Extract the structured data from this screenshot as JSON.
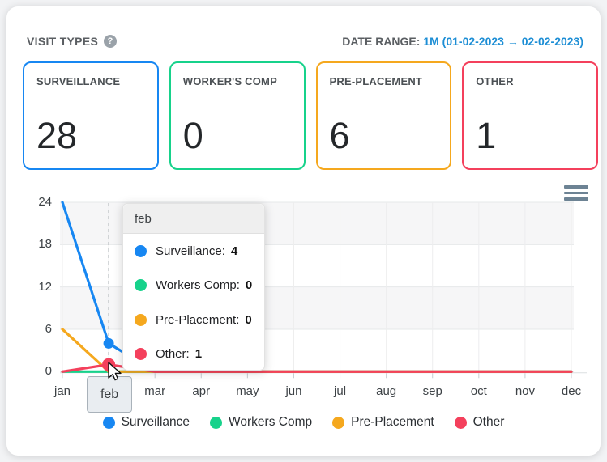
{
  "page": {
    "title": "VISIT TYPES",
    "help_icon": "?",
    "date_range_label": "DATE RANGE: ",
    "date_range_value": "1M (01-02-2023 → 02-02-2023)"
  },
  "cards": [
    {
      "title": "SURVEILLANCE",
      "value": "28",
      "color": "#1787f2"
    },
    {
      "title": "WORKER'S COMP",
      "value": "0",
      "color": "#17d28b"
    },
    {
      "title": "PRE-PLACEMENT",
      "value": "6",
      "color": "#f5a81e"
    },
    {
      "title": "OTHER",
      "value": "1",
      "color": "#f4405c"
    }
  ],
  "chart_data": {
    "type": "line",
    "x": [
      "jan",
      "feb",
      "mar",
      "apr",
      "may",
      "jun",
      "jul",
      "aug",
      "sep",
      "oct",
      "nov",
      "dec"
    ],
    "series": [
      {
        "name": "Surveillance",
        "color": "#1787f2",
        "values": [
          24,
          4,
          0,
          0,
          0,
          0,
          0,
          0,
          0,
          0,
          0,
          0
        ]
      },
      {
        "name": "Workers Comp",
        "color": "#17d28b",
        "values": [
          0,
          0,
          0,
          0,
          0,
          0,
          0,
          0,
          0,
          0,
          0,
          0
        ]
      },
      {
        "name": "Pre-Placement",
        "color": "#f5a81e",
        "values": [
          6,
          0,
          0,
          0,
          0,
          0,
          0,
          0,
          0,
          0,
          0,
          0
        ]
      },
      {
        "name": "Other",
        "color": "#f4405c",
        "values": [
          0,
          1,
          0,
          0,
          0,
          0,
          0,
          0,
          0,
          0,
          0,
          0
        ]
      }
    ],
    "yticks": [
      0,
      6,
      12,
      18,
      24
    ],
    "ylim": [
      0,
      24
    ],
    "grid": "horizontal-bands",
    "legend_position": "bottom",
    "highlighted_x": "feb",
    "hover_markers": [
      {
        "series": "Surveillance",
        "x": "feb",
        "value": 4,
        "radius": 6.5
      },
      {
        "series": "Other",
        "x": "feb",
        "value": 1,
        "radius": 8
      }
    ]
  },
  "tooltip": {
    "title": "feb",
    "rows": [
      {
        "label": "Surveillance:",
        "value": "4",
        "color": "#1787f2"
      },
      {
        "label": "Workers Comp:",
        "value": "0",
        "color": "#17d28b"
      },
      {
        "label": "Pre-Placement:",
        "value": "0",
        "color": "#f5a81e"
      },
      {
        "label": "Other:",
        "value": "1",
        "color": "#f4405c"
      }
    ]
  },
  "icons": {
    "menu": "hamburger-menu",
    "help": "question-mark",
    "cursor": "arrow-pointer"
  }
}
